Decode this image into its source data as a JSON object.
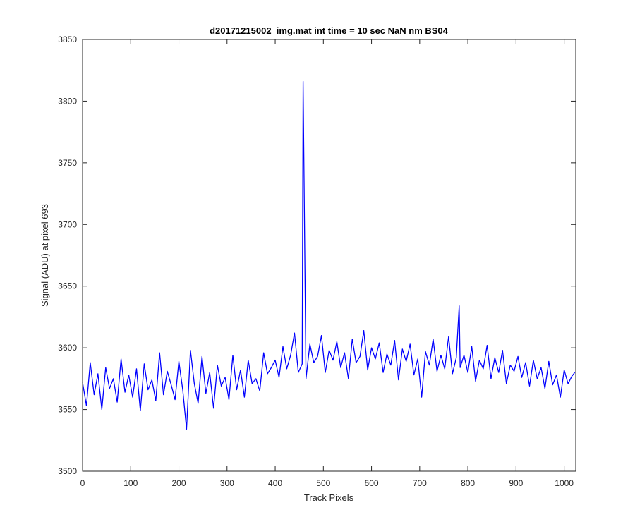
{
  "chart_data": {
    "type": "line",
    "title": "d20171215002_img.mat int time = 10 sec  NaN nm BS04",
    "xlabel": "Track Pixels",
    "ylabel": "Signal (ADU) at pixel 693",
    "xlim": [
      0,
      1024
    ],
    "ylim": [
      3500,
      3850
    ],
    "x_ticks": [
      0,
      100,
      200,
      300,
      400,
      500,
      600,
      700,
      800,
      900,
      1000
    ],
    "y_ticks": [
      3500,
      3550,
      3600,
      3650,
      3700,
      3750,
      3800,
      3850
    ],
    "grid": false,
    "legend": "none",
    "series": [
      {
        "color": "#0000ff",
        "x_step": 8,
        "x": [
          0,
          8,
          16,
          24,
          32,
          40,
          48,
          56,
          64,
          72,
          80,
          88,
          96,
          104,
          112,
          120,
          128,
          136,
          144,
          152,
          160,
          168,
          176,
          184,
          192,
          200,
          208,
          216,
          224,
          232,
          240,
          248,
          256,
          264,
          272,
          280,
          288,
          296,
          304,
          312,
          320,
          328,
          336,
          344,
          352,
          360,
          368,
          376,
          384,
          392,
          400,
          408,
          416,
          424,
          432,
          440,
          448,
          456,
          458,
          464,
          472,
          480,
          488,
          496,
          504,
          512,
          520,
          528,
          536,
          544,
          552,
          560,
          568,
          576,
          584,
          592,
          600,
          608,
          616,
          624,
          632,
          640,
          648,
          656,
          664,
          672,
          680,
          688,
          696,
          704,
          712,
          720,
          728,
          736,
          744,
          752,
          760,
          768,
          776,
          782,
          784,
          792,
          800,
          808,
          816,
          824,
          832,
          840,
          848,
          856,
          864,
          872,
          880,
          888,
          896,
          904,
          912,
          920,
          928,
          936,
          944,
          952,
          960,
          968,
          976,
          984,
          992,
          1000,
          1008,
          1016,
          1022
        ],
        "values": [
          3572,
          3553,
          3588,
          3562,
          3579,
          3550,
          3584,
          3567,
          3575,
          3556,
          3591,
          3564,
          3578,
          3560,
          3583,
          3549,
          3587,
          3566,
          3574,
          3557,
          3596,
          3562,
          3581,
          3570,
          3558,
          3589,
          3566,
          3534,
          3598,
          3571,
          3555,
          3593,
          3563,
          3580,
          3551,
          3586,
          3569,
          3576,
          3558,
          3594,
          3566,
          3582,
          3560,
          3590,
          3571,
          3575,
          3565,
          3596,
          3579,
          3584,
          3590,
          3576,
          3601,
          3583,
          3594,
          3612,
          3580,
          3587,
          3816,
          3575,
          3603,
          3588,
          3593,
          3610,
          3580,
          3598,
          3590,
          3605,
          3584,
          3596,
          3575,
          3607,
          3588,
          3593,
          3614,
          3582,
          3600,
          3591,
          3604,
          3580,
          3595,
          3586,
          3606,
          3574,
          3599,
          3589,
          3603,
          3578,
          3591,
          3560,
          3597,
          3586,
          3607,
          3581,
          3594,
          3583,
          3609,
          3579,
          3592,
          3634,
          3584,
          3594,
          3580,
          3601,
          3573,
          3590,
          3583,
          3602,
          3575,
          3592,
          3580,
          3598,
          3571,
          3586,
          3581,
          3593,
          3576,
          3588,
          3569,
          3590,
          3575,
          3584,
          3567,
          3589,
          3570,
          3578,
          3560,
          3582,
          3571,
          3577,
          3580
        ]
      }
    ]
  }
}
